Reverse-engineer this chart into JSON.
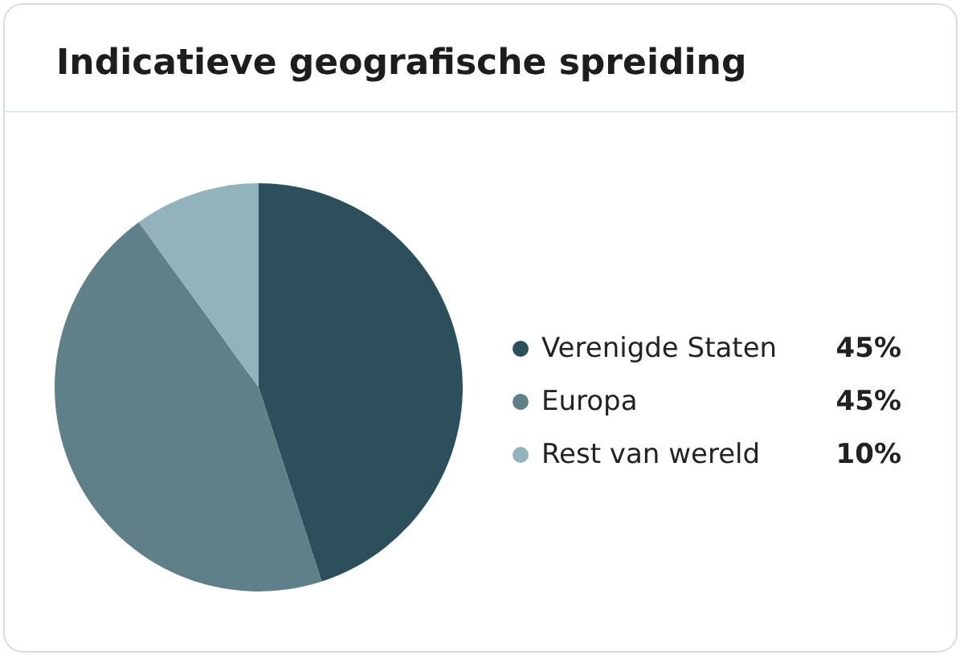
{
  "chart_data": {
    "type": "pie",
    "title": "Indicatieve geografische spreiding",
    "categories": [
      "Verenigde Staten",
      "Europa",
      "Rest van wereld"
    ],
    "values": [
      45,
      45,
      10
    ],
    "colors": [
      "#2d4f5b",
      "#5f8088",
      "#93b3bc"
    ],
    "value_labels": [
      "45%",
      "45%",
      "10%"
    ],
    "legend": "right"
  }
}
